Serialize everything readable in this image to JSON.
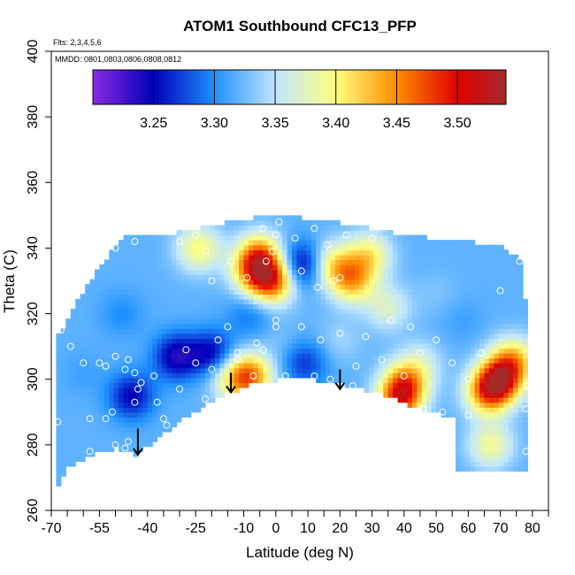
{
  "chart_data": {
    "type": "heatmap",
    "title": "ATOM1 Southbound CFC13_PFP",
    "notes": [
      "Flts: 2,3,4,5,6",
      "MMDD: 0801,0803,0806,0808,0812"
    ],
    "xlabel": "Latitude (deg N)",
    "ylabel": "Theta (C)",
    "xlim": [
      -70,
      85
    ],
    "ylim": [
      260,
      400
    ],
    "x_tick_labels": [
      "-70",
      "-55",
      "-40",
      "-25",
      "-10",
      "0",
      "10",
      "20",
      "30",
      "40",
      "50",
      "60",
      "70",
      "80"
    ],
    "x_tick_values": [
      -70,
      -55,
      -40,
      -25,
      -10,
      0,
      10,
      20,
      30,
      40,
      50,
      60,
      70,
      80
    ],
    "y_tick_labels": [
      "260",
      "280",
      "300",
      "320",
      "340",
      "360",
      "380",
      "400"
    ],
    "y_tick_values": [
      260,
      280,
      300,
      320,
      340,
      360,
      380,
      400
    ],
    "colorbar": {
      "range": [
        3.2,
        3.54
      ],
      "tick_labels": [
        "3.25",
        "3.30",
        "3.35",
        "3.40",
        "3.45",
        "3.50"
      ],
      "tick_values": [
        3.25,
        3.3,
        3.35,
        3.4,
        3.45,
        3.5
      ],
      "stops": [
        {
          "v": 3.2,
          "color": "#8a2be2"
        },
        {
          "v": 3.25,
          "color": "#0000b8"
        },
        {
          "v": 3.3,
          "color": "#1e90ff"
        },
        {
          "v": 3.35,
          "color": "#bfe6ff"
        },
        {
          "v": 3.4,
          "color": "#ffff80"
        },
        {
          "v": 3.45,
          "color": "#ff8c00"
        },
        {
          "v": 3.5,
          "color": "#e00000"
        },
        {
          "v": 3.54,
          "color": "#a52a2a"
        }
      ]
    },
    "field_outline": [
      [
        -69,
        266
      ],
      [
        -65,
        273
      ],
      [
        -58,
        277
      ],
      [
        -50,
        279
      ],
      [
        -44,
        277
      ],
      [
        -38,
        281
      ],
      [
        -30,
        287
      ],
      [
        -22,
        292
      ],
      [
        -14,
        296
      ],
      [
        -6,
        299
      ],
      [
        2,
        300
      ],
      [
        10,
        300
      ],
      [
        18,
        299
      ],
      [
        26,
        297
      ],
      [
        34,
        295
      ],
      [
        42,
        292
      ],
      [
        48,
        290
      ],
      [
        56,
        288
      ],
      [
        62,
        287
      ],
      [
        70,
        286
      ],
      [
        77,
        285
      ],
      [
        79,
        289
      ],
      [
        79,
        306
      ],
      [
        77,
        336
      ],
      [
        70,
        341
      ],
      [
        60,
        342
      ],
      [
        40,
        344
      ],
      [
        25,
        347
      ],
      [
        10,
        349
      ],
      [
        0,
        350
      ],
      [
        -10,
        349
      ],
      [
        -25,
        346
      ],
      [
        -35,
        344
      ],
      [
        -46,
        344
      ],
      [
        -52,
        338
      ],
      [
        -60,
        327
      ],
      [
        -68,
        313
      ],
      [
        -69,
        300
      ]
    ],
    "extra_patch": {
      "x": [
        56,
        79
      ],
      "y": [
        272,
        292
      ]
    },
    "anomalies": [
      {
        "x": -1,
        "y": 330,
        "v": 3.46
      },
      {
        "x": -5,
        "y": 338,
        "v": 3.43
      },
      {
        "x": -7,
        "y": 333,
        "v": 3.42
      },
      {
        "x": -8,
        "y": 301,
        "v": 3.45
      },
      {
        "x": -14,
        "y": 300,
        "v": 3.38
      },
      {
        "x": -24,
        "y": 340,
        "v": 3.4
      },
      {
        "x": 18,
        "y": 335,
        "v": 3.4
      },
      {
        "x": 24,
        "y": 330,
        "v": 3.42
      },
      {
        "x": 29,
        "y": 338,
        "v": 3.4
      },
      {
        "x": 40,
        "y": 298,
        "v": 3.46
      },
      {
        "x": 38,
        "y": 292,
        "v": 3.42
      },
      {
        "x": 70,
        "y": 300,
        "v": 3.47
      },
      {
        "x": 66,
        "y": 296,
        "v": 3.44
      },
      {
        "x": 74,
        "y": 306,
        "v": 3.42
      },
      {
        "x": 67,
        "y": 280,
        "v": 3.39
      },
      {
        "x": -31,
        "y": 307,
        "v": 3.24
      },
      {
        "x": -20,
        "y": 308,
        "v": 3.25
      },
      {
        "x": -45,
        "y": 295,
        "v": 3.25
      },
      {
        "x": 8,
        "y": 335,
        "v": 3.24
      },
      {
        "x": 9,
        "y": 305,
        "v": 3.27
      },
      {
        "x": -8,
        "y": 320,
        "v": 3.29
      },
      {
        "x": -60,
        "y": 302,
        "v": 3.31
      },
      {
        "x": -48,
        "y": 320,
        "v": 3.3
      },
      {
        "x": 50,
        "y": 326,
        "v": 3.33
      },
      {
        "x": 58,
        "y": 318,
        "v": 3.31
      },
      {
        "x": 20,
        "y": 312,
        "v": 3.34
      },
      {
        "x": 45,
        "y": 305,
        "v": 3.36
      },
      {
        "x": 35,
        "y": 322,
        "v": 3.37
      },
      {
        "x": 2,
        "y": 312,
        "v": 3.33
      }
    ],
    "base_value": 3.32,
    "markers": [
      [
        -68,
        266
      ],
      [
        -68,
        287
      ],
      [
        -67,
        315
      ],
      [
        -64,
        310
      ],
      [
        -60,
        305
      ],
      [
        -55,
        305
      ],
      [
        -53,
        304
      ],
      [
        -50,
        307
      ],
      [
        -46,
        306
      ],
      [
        -47,
        303
      ],
      [
        -44,
        302
      ],
      [
        -43,
        297
      ],
      [
        -44,
        293
      ],
      [
        -38,
        301
      ],
      [
        -37,
        293
      ],
      [
        -30,
        297
      ],
      [
        -25,
        305
      ],
      [
        -20,
        303
      ],
      [
        -22,
        294
      ],
      [
        -34,
        286
      ],
      [
        -35,
        288
      ],
      [
        -58,
        278
      ],
      [
        -50,
        280
      ],
      [
        -47,
        279
      ],
      [
        -53,
        288
      ],
      [
        -58,
        288
      ],
      [
        -51,
        290
      ],
      [
        -42,
        299
      ],
      [
        -46,
        281
      ],
      [
        -56,
        338
      ],
      [
        -50,
        340
      ],
      [
        -44,
        342
      ],
      [
        -30,
        342
      ],
      [
        -25,
        344
      ],
      [
        -22,
        339
      ],
      [
        -14,
        336
      ],
      [
        -20,
        330
      ],
      [
        -9,
        331
      ],
      [
        -3,
        336
      ],
      [
        -1,
        339
      ],
      [
        0,
        344
      ],
      [
        1,
        348
      ],
      [
        -4,
        346
      ],
      [
        6,
        343
      ],
      [
        12,
        346
      ],
      [
        16,
        341
      ],
      [
        22,
        344
      ],
      [
        30,
        343
      ],
      [
        20,
        331
      ],
      [
        18,
        330
      ],
      [
        8,
        333
      ],
      [
        13,
        328
      ],
      [
        -4,
        309
      ],
      [
        -12,
        308
      ],
      [
        -18,
        312
      ],
      [
        0,
        318
      ],
      [
        0,
        316
      ],
      [
        8,
        316
      ],
      [
        14,
        312
      ],
      [
        20,
        314
      ],
      [
        28,
        313
      ],
      [
        36,
        318
      ],
      [
        42,
        316
      ],
      [
        45,
        308
      ],
      [
        50,
        312
      ],
      [
        55,
        305
      ],
      [
        60,
        300
      ],
      [
        64,
        308
      ],
      [
        70,
        327
      ],
      [
        76,
        336
      ],
      [
        78,
        298
      ],
      [
        78,
        291
      ],
      [
        78,
        278
      ],
      [
        3,
        301
      ],
      [
        12,
        301
      ],
      [
        17,
        300
      ],
      [
        24,
        298
      ],
      [
        31,
        295
      ],
      [
        38,
        291
      ],
      [
        46,
        291
      ],
      [
        52,
        290
      ],
      [
        60,
        289
      ],
      [
        -7,
        301
      ],
      [
        -12,
        306
      ],
      [
        -28,
        309
      ],
      [
        -6,
        311
      ],
      [
        -15,
        316
      ],
      [
        25,
        304
      ],
      [
        33,
        306
      ],
      [
        40,
        301
      ]
    ],
    "arrows": [
      {
        "x": -43,
        "y_from": 285,
        "y_to": 277
      },
      {
        "x": -14,
        "y_from": 302,
        "y_to": 296
      },
      {
        "x": 20,
        "y_from": 303,
        "y_to": 297
      }
    ]
  }
}
